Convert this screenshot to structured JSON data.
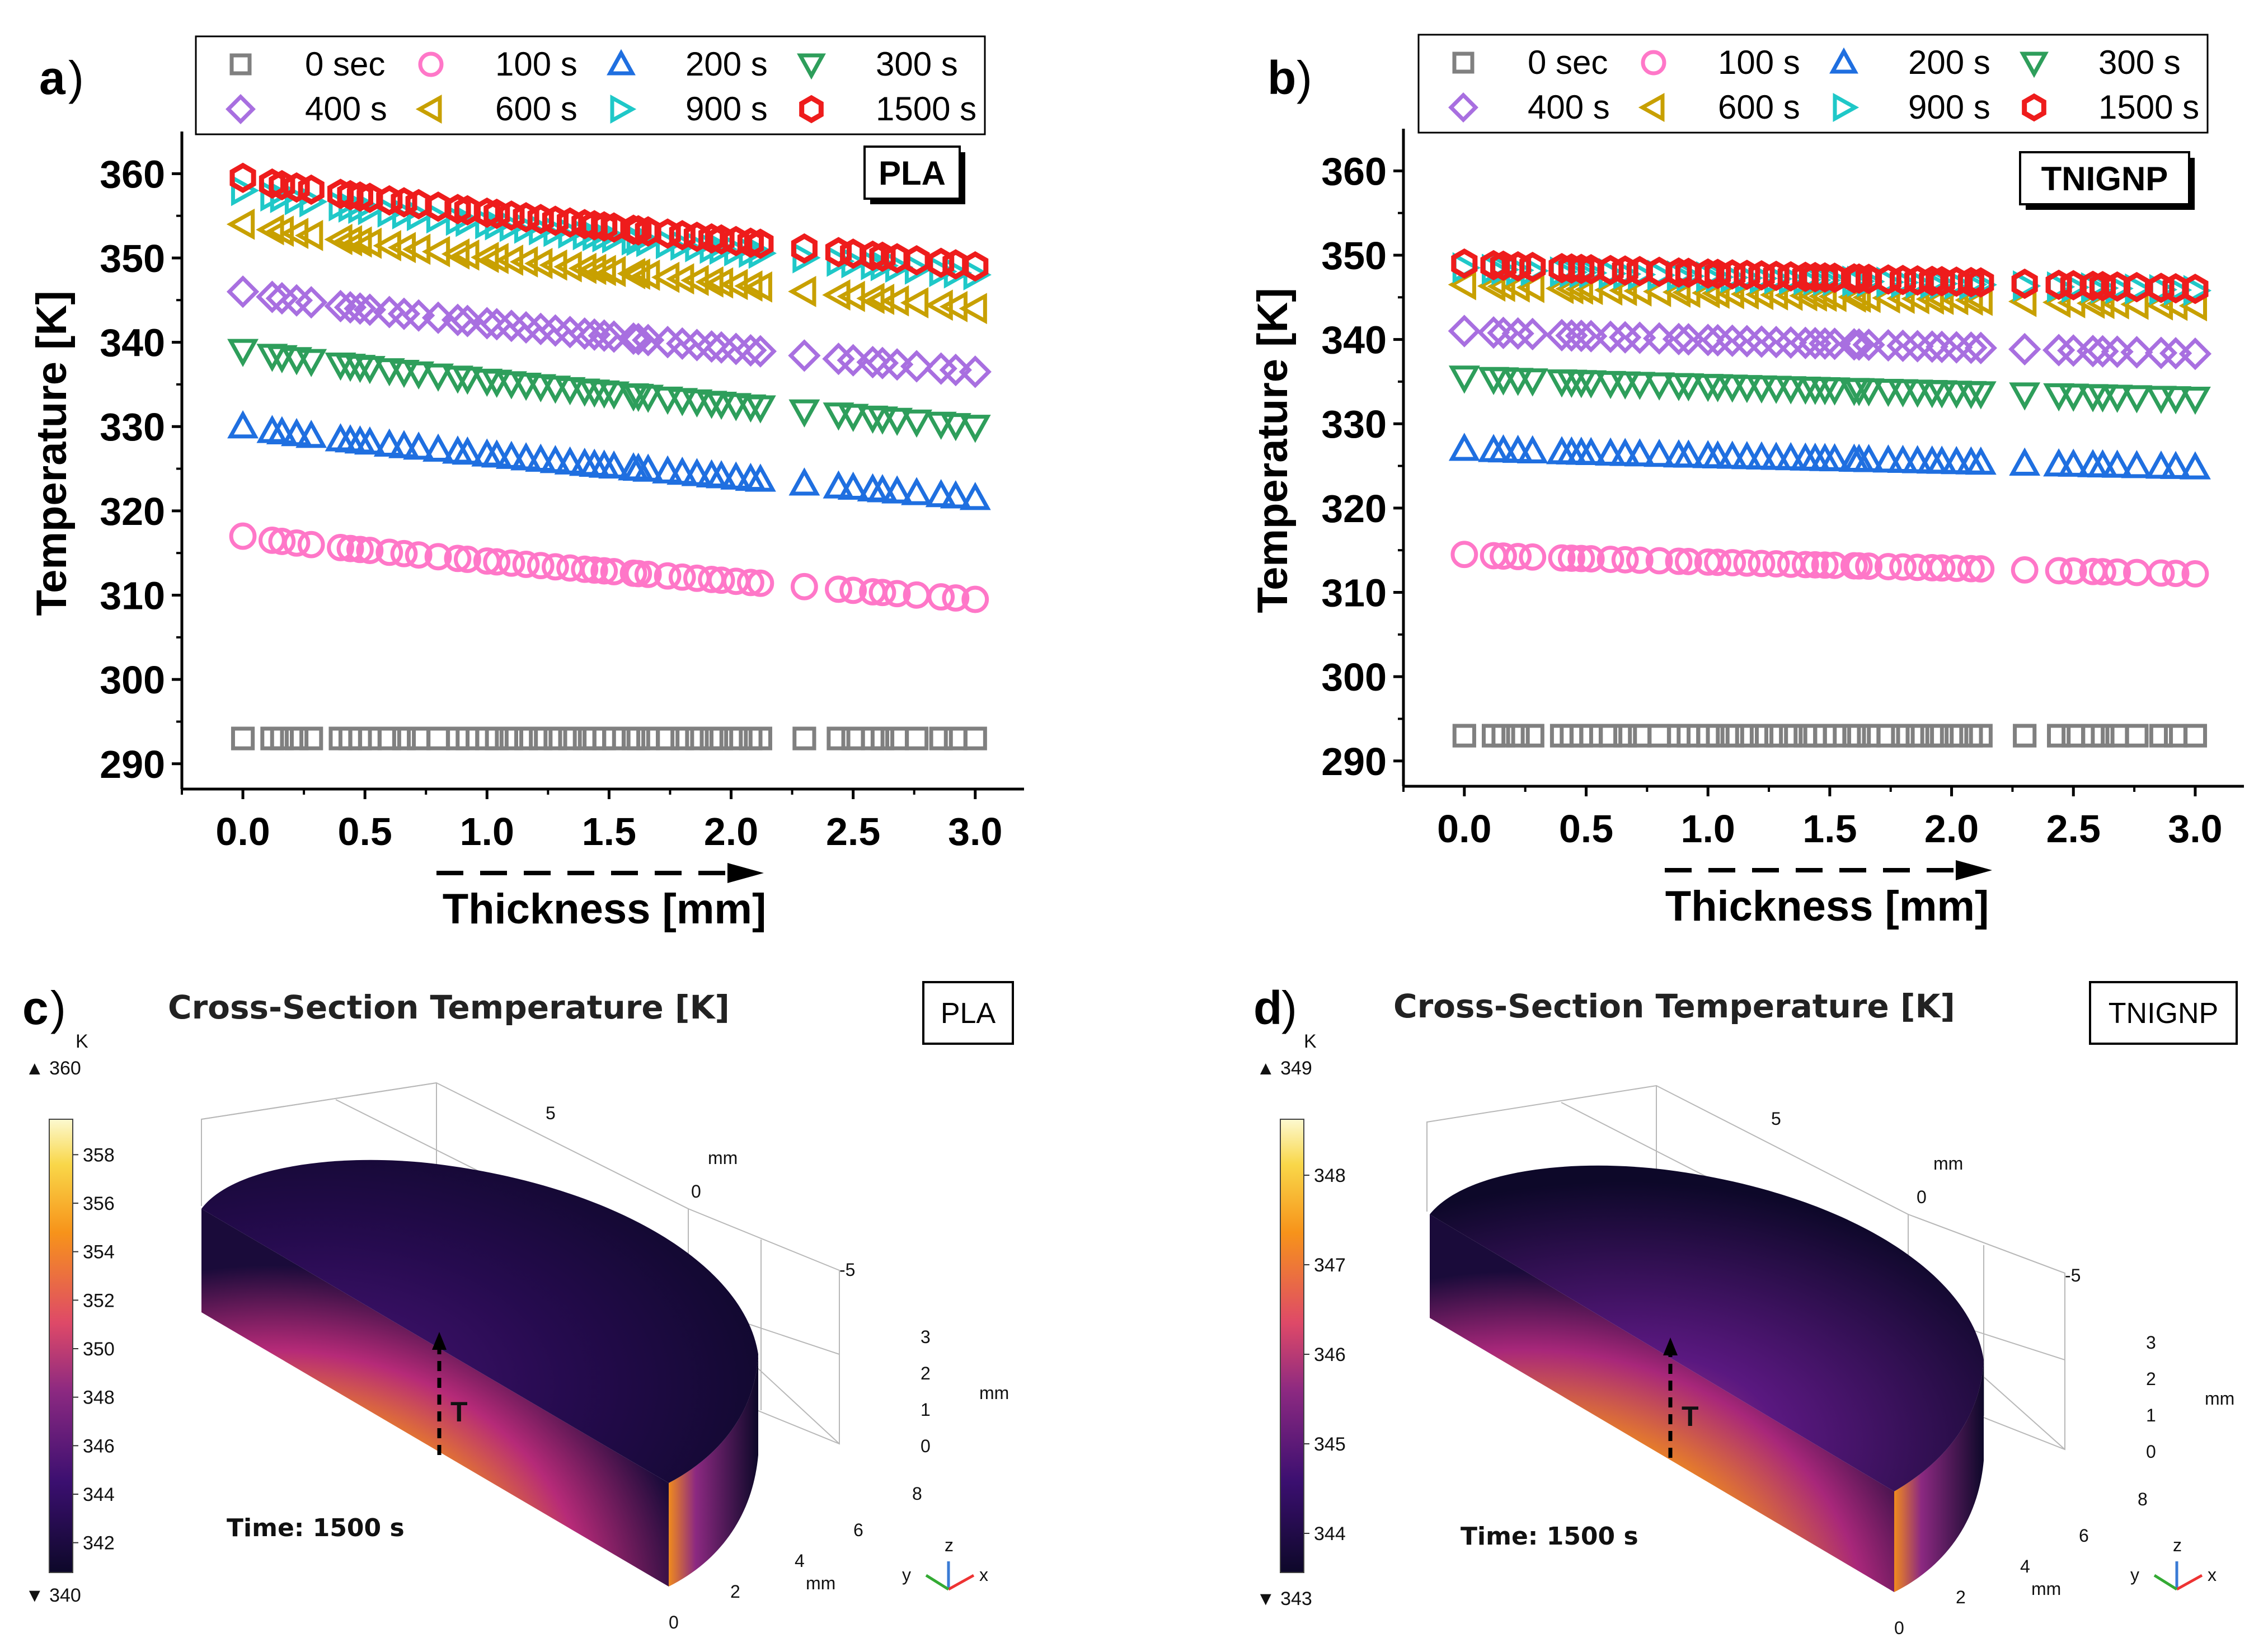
{
  "chart_data": [
    {
      "panel": "a",
      "type": "scatter",
      "tag": "PLA",
      "xlabel": "Thickness [mm]",
      "ylabel": "Temperature [K]",
      "xlim": [
        -0.25,
        3.2
      ],
      "ylim": [
        287,
        365
      ],
      "xticks": [
        "0.0",
        "0.5",
        "1.0",
        "1.5",
        "2.0",
        "2.5",
        "3.0"
      ],
      "yticks": [
        "290",
        "300",
        "310",
        "320",
        "330",
        "340",
        "350",
        "360"
      ],
      "x": [
        0.0,
        0.12,
        0.16,
        0.22,
        0.28,
        0.4,
        0.44,
        0.48,
        0.52,
        0.6,
        0.66,
        0.72,
        0.8,
        0.88,
        0.92,
        1.0,
        1.04,
        1.1,
        1.16,
        1.22,
        1.28,
        1.34,
        1.4,
        1.44,
        1.48,
        1.52,
        1.6,
        1.62,
        1.66,
        1.74,
        1.8,
        1.86,
        1.92,
        1.96,
        2.02,
        2.08,
        2.12,
        2.3,
        2.44,
        2.5,
        2.58,
        2.62,
        2.68,
        2.76,
        2.86,
        2.92,
        3.0
      ],
      "legend": [
        "0 sec",
        "100 s",
        "200 s",
        "300 s",
        "400 s",
        "600 s",
        "900 s",
        "1500 s"
      ],
      "series": [
        {
          "name": "0 sec",
          "marker": "square",
          "color": "#808080",
          "y0": 293,
          "y1": 293
        },
        {
          "name": "100 s",
          "marker": "circle",
          "color": "#ff77c8",
          "y0": 317,
          "y1": 309.5
        },
        {
          "name": "200 s",
          "marker": "triangle-up",
          "color": "#1f6fe0",
          "y0": 330,
          "y1": 321.5
        },
        {
          "name": "300 s",
          "marker": "triangle-down",
          "color": "#2e9e5b",
          "y0": 339,
          "y1": 330
        },
        {
          "name": "400 s",
          "marker": "diamond",
          "color": "#a86fe0",
          "y0": 346,
          "y1": 336.5
        },
        {
          "name": "600 s",
          "marker": "triangle-left",
          "color": "#c8a000",
          "y0": 354,
          "y1": 344
        },
        {
          "name": "900 s",
          "marker": "triangle-right",
          "color": "#1fc8c8",
          "y0": 358,
          "y1": 348
        },
        {
          "name": "1500 s",
          "marker": "hexagon",
          "color": "#ee1c1c",
          "y0": 359.5,
          "y1": 349
        }
      ]
    },
    {
      "panel": "b",
      "type": "scatter",
      "tag": "TNIGNP",
      "xlabel": "Thickness [mm]",
      "ylabel": "Temperature [K]",
      "xlim": [
        -0.25,
        3.2
      ],
      "ylim": [
        287,
        365
      ],
      "xticks": [
        "0.0",
        "0.5",
        "1.0",
        "1.5",
        "2.0",
        "2.5",
        "3.0"
      ],
      "yticks": [
        "290",
        "300",
        "310",
        "320",
        "330",
        "340",
        "350",
        "360"
      ],
      "x": [
        0.0,
        0.12,
        0.16,
        0.22,
        0.28,
        0.4,
        0.44,
        0.48,
        0.52,
        0.6,
        0.66,
        0.72,
        0.8,
        0.88,
        0.92,
        1.0,
        1.04,
        1.1,
        1.16,
        1.22,
        1.28,
        1.34,
        1.4,
        1.44,
        1.48,
        1.52,
        1.6,
        1.62,
        1.66,
        1.74,
        1.8,
        1.86,
        1.92,
        1.96,
        2.02,
        2.08,
        2.12,
        2.3,
        2.44,
        2.5,
        2.58,
        2.62,
        2.68,
        2.76,
        2.86,
        2.92,
        3.0
      ],
      "legend": [
        "0 sec",
        "100 s",
        "200 s",
        "300 s",
        "400 s",
        "600 s",
        "900 s",
        "1500 s"
      ],
      "series": [
        {
          "name": "0 sec",
          "marker": "square",
          "color": "#808080",
          "y0": 293,
          "y1": 293
        },
        {
          "name": "100 s",
          "marker": "circle",
          "color": "#ff77c8",
          "y0": 314.5,
          "y1": 312.2
        },
        {
          "name": "200 s",
          "marker": "triangle-up",
          "color": "#1f6fe0",
          "y0": 327,
          "y1": 324.8
        },
        {
          "name": "300 s",
          "marker": "triangle-down",
          "color": "#2e9e5b",
          "y0": 335.5,
          "y1": 333
        },
        {
          "name": "400 s",
          "marker": "diamond",
          "color": "#a86fe0",
          "y0": 341,
          "y1": 338.3
        },
        {
          "name": "600 s",
          "marker": "triangle-left",
          "color": "#c8a000",
          "y0": 346.5,
          "y1": 344
        },
        {
          "name": "900 s",
          "marker": "triangle-right",
          "color": "#1fc8c8",
          "y0": 348.5,
          "y1": 345.8
        },
        {
          "name": "1500 s",
          "marker": "hexagon",
          "color": "#ee1c1c",
          "y0": 349,
          "y1": 346
        }
      ]
    },
    {
      "panel": "c",
      "type": "heatmap",
      "title": "Cross-Section Temperature [K]",
      "tag": "PLA",
      "unit": "K",
      "max_label": "▲ 360",
      "min_label": "▼ 340",
      "colorbar_ticks": [
        "358",
        "356",
        "354",
        "352",
        "350",
        "348",
        "346",
        "344",
        "342"
      ],
      "time_label": "Time: 1500 s",
      "arrow_label": "T",
      "axis_ticks_y": [
        "5",
        "0",
        "-5"
      ],
      "axis_ticks_z": [
        "3",
        "2",
        "1",
        "0"
      ],
      "axis_ticks_x": [
        "8",
        "6",
        "4",
        "2",
        "0"
      ],
      "axis_unit": "mm"
    },
    {
      "panel": "d",
      "type": "heatmap",
      "title": "Cross-Section Temperature [K]",
      "tag": "TNIGNP",
      "unit": "K",
      "max_label": "▲ 349",
      "min_label": "▼ 343",
      "colorbar_ticks": [
        "348",
        "347",
        "346",
        "345",
        "344"
      ],
      "time_label": "Time: 1500 s",
      "arrow_label": "T",
      "axis_ticks_y": [
        "5",
        "0",
        "-5"
      ],
      "axis_ticks_z": [
        "3",
        "2",
        "1",
        "0"
      ],
      "axis_ticks_x": [
        "8",
        "6",
        "4",
        "2",
        "0"
      ],
      "axis_unit": "mm"
    }
  ],
  "panel_letters": [
    "a",
    "b",
    "c",
    "d"
  ],
  "paren": ")",
  "triad": {
    "x": "x",
    "y": "y",
    "z": "z"
  },
  "colors": {
    "inferno_dark": "#0d0829",
    "inferno_purple": "#5a1880",
    "inferno_magenta": "#b62a78",
    "inferno_orange": "#f08a1e",
    "inferno_light": "#fcf9c6"
  }
}
